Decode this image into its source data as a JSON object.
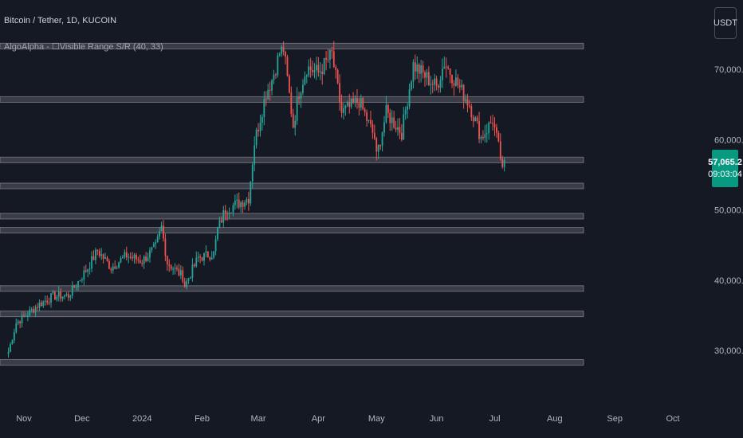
{
  "header": {
    "symbol_title": "Bitcoin / Tether, 1D, KUCOIN",
    "indicator_label": "AlgoAlpha - ☐Visible Range S/R (40, 33)"
  },
  "currency_button": "USDT",
  "price_badge": {
    "price": "57,065.2",
    "countdown": "09:03:04",
    "color": "#089981"
  },
  "colors": {
    "background": "#151924",
    "up": "#26a69a",
    "down": "#ef5350",
    "zone_fill": "#3a3d47",
    "zone_border": "#a0a3ab"
  },
  "chart_data": {
    "type": "candlestick",
    "title": "Bitcoin / Tether, 1D, KUCOIN",
    "y_axis": {
      "position": "right",
      "ticks": [
        30000,
        40000,
        50000,
        60000,
        70000
      ],
      "tick_labels": [
        "30,000.0",
        "40,000.0",
        "50,000.0",
        "60,000.0",
        "70,000.0"
      ],
      "range": [
        27500,
        75500
      ]
    },
    "x_axis": {
      "ticks": [
        "2023-11-01",
        "2023-12-01",
        "2024-01-01",
        "2024-02-01",
        "2024-03-01",
        "2024-04-01",
        "2024-05-01",
        "2024-06-01",
        "2024-07-01",
        "2024-08-01",
        "2024-09-01",
        "2024-10-01"
      ],
      "tick_labels": [
        "Nov",
        "Dec",
        "2024",
        "Feb",
        "Mar",
        "Apr",
        "May",
        "Jun",
        "Jul",
        "Aug",
        "Sep",
        "Oct"
      ]
    },
    "grid": false,
    "last_price": 57065.2,
    "sr_zones": [
      {
        "low": 72900,
        "high": 73700
      },
      {
        "low": 65300,
        "high": 66100
      },
      {
        "low": 56700,
        "high": 57500
      },
      {
        "low": 53000,
        "high": 53800
      },
      {
        "low": 48700,
        "high": 49500
      },
      {
        "low": 46700,
        "high": 47500
      },
      {
        "low": 38400,
        "high": 39200
      },
      {
        "low": 34800,
        "high": 35600
      },
      {
        "low": 27900,
        "high": 28700
      }
    ],
    "anchors": [
      [
        "2023-10-24",
        29800
      ],
      [
        "2023-10-28",
        33900
      ],
      [
        "2023-11-09",
        36600
      ],
      [
        "2023-11-16",
        37700
      ],
      [
        "2023-11-24",
        37800
      ],
      [
        "2023-12-04",
        41800
      ],
      [
        "2023-12-09",
        44200
      ],
      [
        "2023-12-16",
        41800
      ],
      [
        "2023-12-24",
        43500
      ],
      [
        "2024-01-01",
        42700
      ],
      [
        "2024-01-08",
        44700
      ],
      [
        "2024-01-11",
        47500
      ],
      [
        "2024-01-14",
        42500
      ],
      [
        "2024-01-22",
        40500
      ],
      [
        "2024-01-23",
        39200
      ],
      [
        "2024-01-30",
        43200
      ],
      [
        "2024-02-07",
        43800
      ],
      [
        "2024-02-09",
        47200
      ],
      [
        "2024-02-13",
        50100
      ],
      [
        "2024-02-21",
        51100
      ],
      [
        "2024-02-25",
        51700
      ],
      [
        "2024-02-28",
        59600
      ],
      [
        "2024-03-05",
        66700
      ],
      [
        "2024-03-08",
        68500
      ],
      [
        "2024-03-12",
        72300
      ],
      [
        "2024-03-14",
        72900
      ],
      [
        "2024-03-19",
        62000
      ],
      [
        "2024-03-22",
        66800
      ],
      [
        "2024-03-26",
        70300
      ],
      [
        "2024-04-01",
        69500
      ],
      [
        "2024-04-08",
        72100
      ],
      [
        "2024-04-13",
        63800
      ],
      [
        "2024-04-22",
        65500
      ],
      [
        "2024-04-30",
        60300
      ],
      [
        "2024-05-01",
        57500
      ],
      [
        "2024-05-06",
        63800
      ],
      [
        "2024-05-14",
        61000
      ],
      [
        "2024-05-20",
        70600
      ],
      [
        "2024-05-27",
        68800
      ],
      [
        "2024-06-01",
        67500
      ],
      [
        "2024-06-05",
        71000
      ],
      [
        "2024-06-12",
        67800
      ],
      [
        "2024-06-18",
        65000
      ],
      [
        "2024-06-24",
        60300
      ],
      [
        "2024-06-27",
        61500
      ],
      [
        "2024-06-30",
        62800
      ],
      [
        "2024-07-04",
        57500
      ],
      [
        "2024-07-05",
        56100
      ],
      [
        "2024-07-06",
        57065
      ]
    ]
  }
}
